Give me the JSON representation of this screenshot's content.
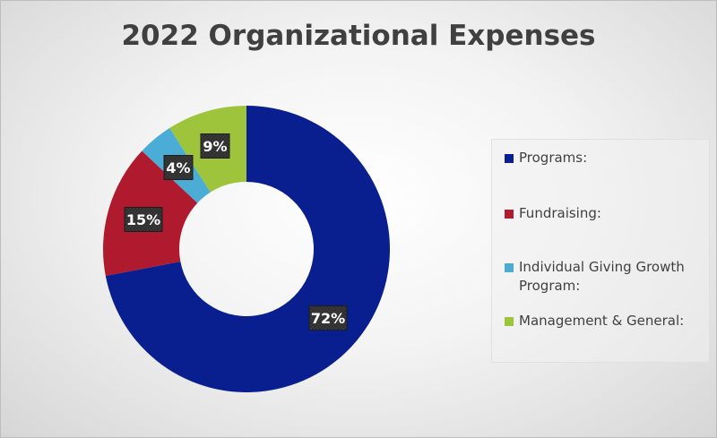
{
  "chart_data": {
    "type": "pie",
    "subtype": "doughnut",
    "title": "2022 Organizational Expenses",
    "series": [
      {
        "name": "Programs:",
        "value": 72,
        "label": "72%",
        "color": "#0a1f8f"
      },
      {
        "name": "Fundraising:",
        "value": 15,
        "label": "15%",
        "color": "#b01a2e"
      },
      {
        "name": "Individual Giving Growth Program:",
        "value": 4,
        "label": "4%",
        "color": "#4badd6"
      },
      {
        "name": "Management & General:",
        "value": 9,
        "label": "9%",
        "color": "#9dc43b"
      }
    ],
    "legend": {
      "position": "right",
      "items": [
        {
          "label": "Programs:",
          "color": "#0a1f8f"
        },
        {
          "label": "Fundraising:",
          "color": "#b01a2e"
        },
        {
          "label": "Individual Giving Growth Program:",
          "color": "#4badd6"
        },
        {
          "label": "Management & General:",
          "color": "#9dc43b"
        }
      ]
    }
  }
}
